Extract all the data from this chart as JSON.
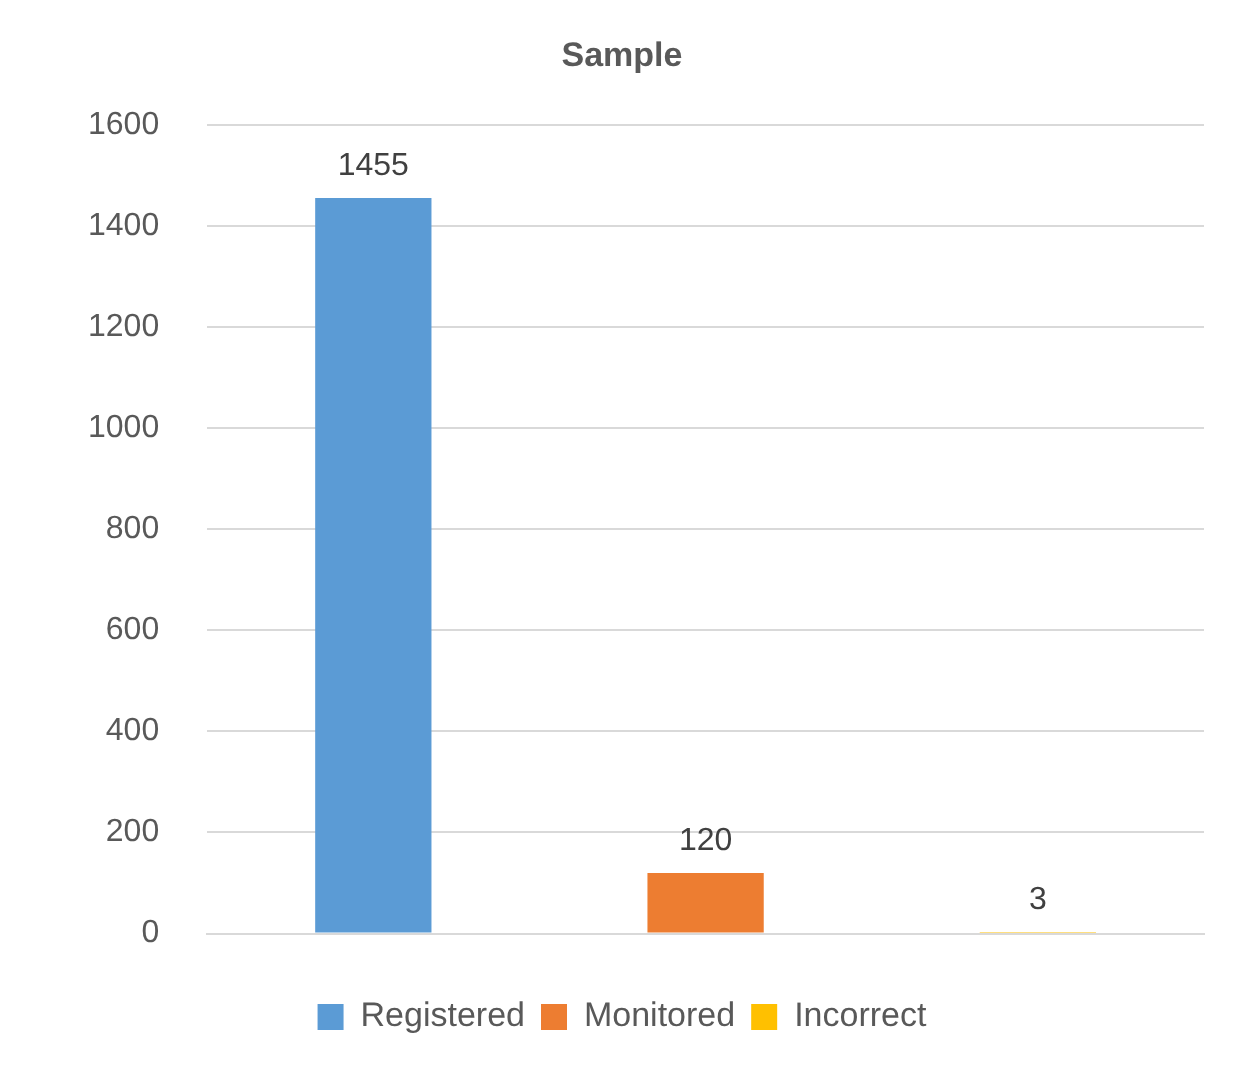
{
  "chart_data": {
    "type": "bar",
    "title": "Sample",
    "categories": [
      null,
      null,
      null
    ],
    "series": [
      {
        "name": "Registered",
        "color": "#5b9bd5",
        "values": [
          1455,
          null,
          null
        ]
      },
      {
        "name": "Monitored",
        "color": "#ed7d31",
        "values": [
          null,
          120,
          null
        ]
      },
      {
        "name": "Incorrect",
        "color": "#ffc000",
        "values": [
          null,
          null,
          3
        ]
      }
    ],
    "ylim": [
      0,
      1600
    ],
    "yticks": [
      0,
      200,
      400,
      600,
      800,
      1000,
      1200,
      1400,
      1600
    ],
    "grid": "y",
    "legend": "bottom",
    "data_labels": true
  }
}
